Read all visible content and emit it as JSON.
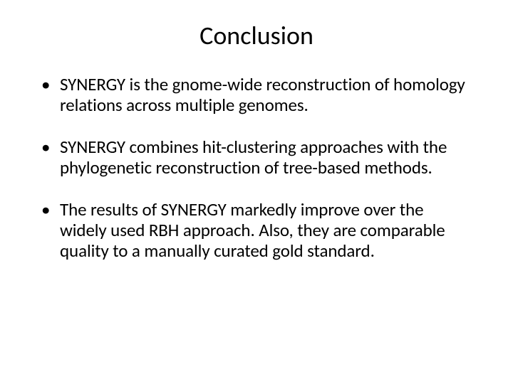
{
  "slide": {
    "title": "Conclusion",
    "bullets": [
      "SYNERGY is the gnome-wide reconstruction of homology relations across multiple genomes.",
      "SYNERGY combines hit-clustering approaches with the phylogenetic reconstruction of tree-based methods.",
      "The results of SYNERGY markedly improve over the widely used RBH approach. Also, they are comparable quality to a manually curated gold standard."
    ]
  },
  "style": {
    "background_color": "#ffffff",
    "text_color": "#000000",
    "title_fontsize": 36,
    "body_fontsize": 25,
    "font_family": "Calibri",
    "slide_width": 720,
    "slide_height": 540
  }
}
